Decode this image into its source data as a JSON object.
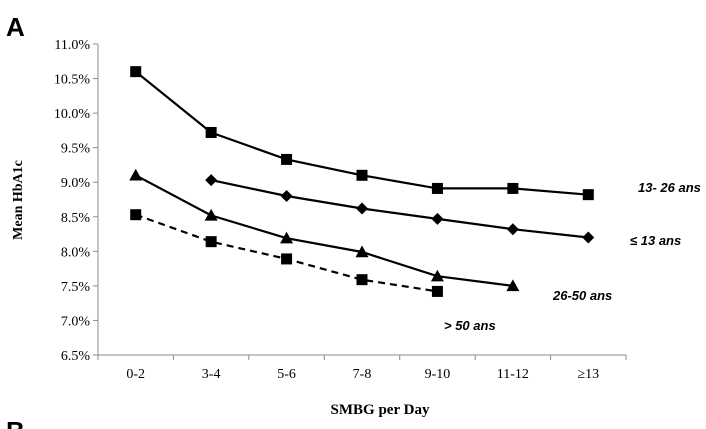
{
  "panel_label": "A",
  "next_panel_label_partial": "B",
  "chart_data": {
    "type": "line",
    "xlabel": "SMBG per Day",
    "ylabel": "Mean HbA1c",
    "categories": [
      "0-2",
      "3-4",
      "5-6",
      "7-8",
      "9-10",
      "11-12",
      "≥13"
    ],
    "ylim": [
      6.5,
      11.0
    ],
    "yticks": [
      "6.5%",
      "7.0%",
      "7.5%",
      "8.0%",
      "8.5%",
      "9.0%",
      "9.5%",
      "10.0%",
      "10.5%",
      "11.0%"
    ],
    "ytick_values": [
      6.5,
      7.0,
      7.5,
      8.0,
      8.5,
      9.0,
      9.5,
      10.0,
      10.5,
      11.0
    ],
    "grid": false,
    "legend": "inline labels at line ends",
    "series": [
      {
        "name": "13- 26 ans",
        "marker": "square",
        "style": "solid",
        "color": "#000000",
        "values": [
          10.6,
          9.72,
          9.33,
          9.1,
          8.91,
          8.91,
          8.82
        ]
      },
      {
        "name": "≤ 13 ans",
        "marker": "diamond",
        "style": "solid",
        "color": "#000000",
        "values": [
          null,
          9.03,
          8.8,
          8.62,
          8.47,
          8.32,
          8.2
        ]
      },
      {
        "name": "26-50 ans",
        "marker": "triangle",
        "style": "solid",
        "color": "#000000",
        "values": [
          9.1,
          8.52,
          8.19,
          7.99,
          7.64,
          7.5,
          null
        ]
      },
      {
        "name": "> 50 ans",
        "marker": "square",
        "style": "dashed",
        "color": "#000000",
        "values": [
          8.53,
          8.14,
          7.89,
          7.59,
          7.42,
          null,
          null
        ]
      }
    ]
  }
}
